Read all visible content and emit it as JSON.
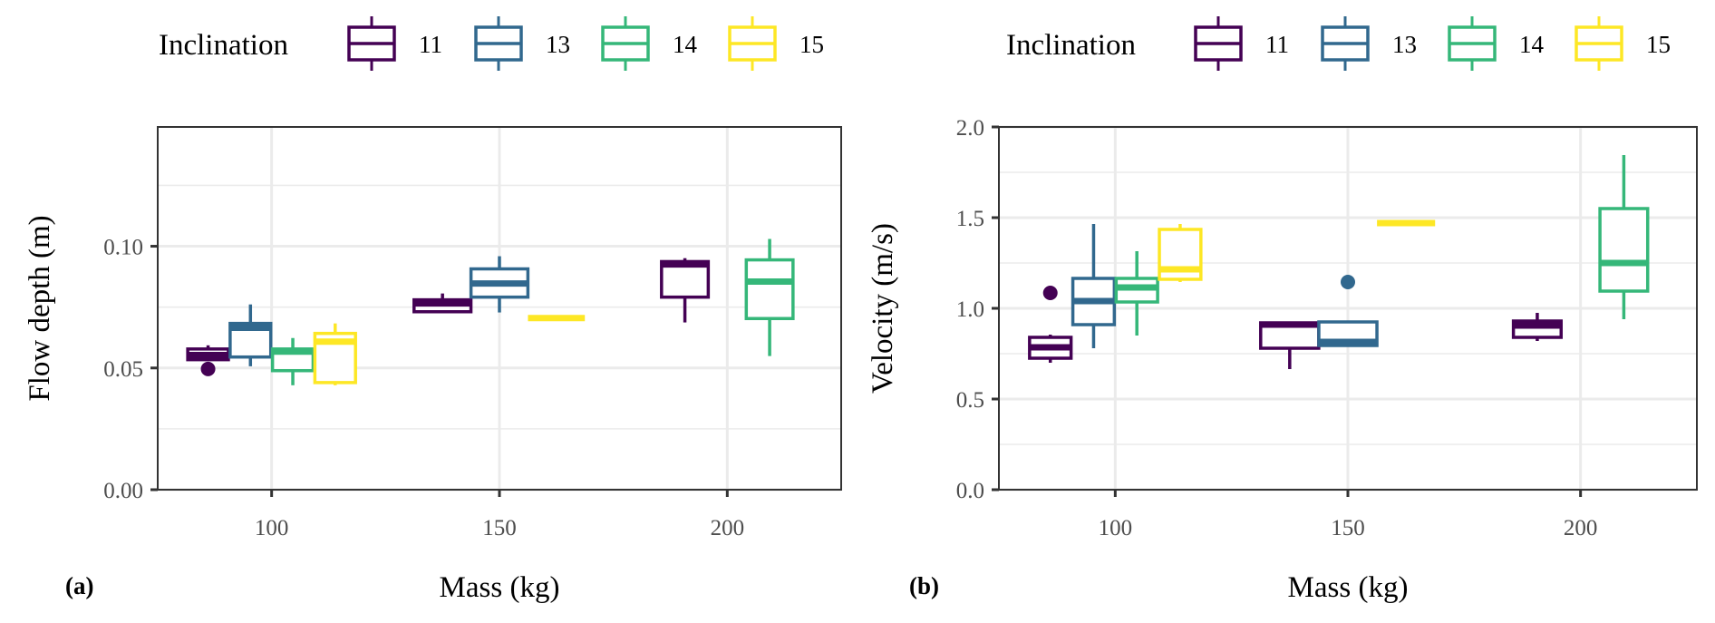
{
  "legend": {
    "title": "Inclination",
    "entries": [
      {
        "label": "11",
        "color": "#440154"
      },
      {
        "label": "13",
        "color": "#31688E"
      },
      {
        "label": "14",
        "color": "#35B779"
      },
      {
        "label": "15",
        "color": "#FDE725"
      }
    ]
  },
  "chart_data": [
    {
      "type": "box",
      "panel_tag": "(a)",
      "title": "",
      "xlabel": "Mass (kg)",
      "ylabel": "Flow depth (m)",
      "xlim": [
        75,
        225
      ],
      "ylim": [
        0,
        0.149
      ],
      "x_ticks": [
        100,
        150,
        200
      ],
      "x_tick_labels": [
        "100",
        "150",
        "200"
      ],
      "y_ticks": [
        0,
        0.05,
        0.1
      ],
      "y_tick_labels": [
        "0.00",
        "0.05",
        "0.10"
      ],
      "y_minor_grid": [
        0.025,
        0.075,
        0.125
      ],
      "grid": true,
      "legend_position": "top",
      "groups": [
        {
          "x": 100,
          "boxes": [
            {
              "series": "11",
              "min": 0.0534,
              "q1": 0.0534,
              "median": 0.0553,
              "q3": 0.0578,
              "max": 0.0593,
              "outliers": [
                0.0496
              ]
            },
            {
              "series": "13",
              "min": 0.0507,
              "q1": 0.0545,
              "median": 0.0665,
              "q3": 0.0683,
              "max": 0.0761,
              "outliers": []
            },
            {
              "series": "14",
              "min": 0.0429,
              "q1": 0.0489,
              "median": 0.0567,
              "q3": 0.0578,
              "max": 0.0623,
              "outliers": []
            },
            {
              "series": "15",
              "min": 0.0429,
              "q1": 0.044,
              "median": 0.0608,
              "q3": 0.0642,
              "max": 0.0683,
              "outliers": []
            }
          ]
        },
        {
          "x": 150,
          "boxes": [
            {
              "series": "11",
              "min": 0.0731,
              "q1": 0.0731,
              "median": 0.0765,
              "q3": 0.078,
              "max": 0.0806,
              "outliers": []
            },
            {
              "series": "13",
              "min": 0.0728,
              "q1": 0.0791,
              "median": 0.0847,
              "q3": 0.0907,
              "max": 0.0959,
              "outliers": []
            },
            {
              "series": "15",
              "min": 0.0705,
              "q1": 0.0705,
              "median": 0.0705,
              "q3": 0.0705,
              "max": 0.0705,
              "outliers": []
            }
          ]
        },
        {
          "x": 200,
          "boxes": [
            {
              "series": "11",
              "min": 0.0687,
              "q1": 0.0791,
              "median": 0.0925,
              "q3": 0.0937,
              "max": 0.0951,
              "outliers": []
            },
            {
              "series": "14",
              "min": 0.0549,
              "q1": 0.0703,
              "median": 0.0855,
              "q3": 0.0944,
              "max": 0.103,
              "outliers": []
            }
          ]
        }
      ]
    },
    {
      "type": "box",
      "panel_tag": "(b)",
      "title": "",
      "xlabel": "Mass (kg)",
      "ylabel": "Velocity (m/s)",
      "xlim": [
        75,
        225
      ],
      "ylim": [
        0,
        2.0
      ],
      "x_ticks": [
        100,
        150,
        200
      ],
      "x_tick_labels": [
        "100",
        "150",
        "200"
      ],
      "y_ticks": [
        0,
        0.5,
        1.0,
        1.5,
        2.0
      ],
      "y_tick_labels": [
        "0.0",
        "0.5",
        "1.0",
        "1.5",
        "2.0"
      ],
      "y_minor_grid": [
        0.25,
        0.75,
        1.25,
        1.75
      ],
      "grid": true,
      "legend_position": "top",
      "groups": [
        {
          "x": 100,
          "boxes": [
            {
              "series": "11",
              "min": 0.7,
              "q1": 0.725,
              "median": 0.785,
              "q3": 0.84,
              "max": 0.855,
              "outliers": [
                1.085
              ]
            },
            {
              "series": "13",
              "min": 0.78,
              "q1": 0.91,
              "median": 1.04,
              "q3": 1.165,
              "max": 1.465,
              "outliers": []
            },
            {
              "series": "14",
              "min": 0.85,
              "q1": 1.035,
              "median": 1.115,
              "q3": 1.165,
              "max": 1.315,
              "outliers": []
            },
            {
              "series": "15",
              "min": 1.145,
              "q1": 1.16,
              "median": 1.215,
              "q3": 1.435,
              "max": 1.465,
              "outliers": []
            }
          ]
        },
        {
          "x": 150,
          "boxes": [
            {
              "series": "11",
              "min": 0.665,
              "q1": 0.78,
              "median": 0.91,
              "q3": 0.92,
              "max": 0.92,
              "outliers": []
            },
            {
              "series": "13",
              "min": 0.795,
              "q1": 0.795,
              "median": 0.815,
              "q3": 0.925,
              "max": 0.925,
              "outliers": [
                1.145
              ]
            },
            {
              "series": "15",
              "min": 1.47,
              "q1": 1.47,
              "median": 1.47,
              "q3": 1.47,
              "max": 1.47,
              "outliers": []
            }
          ]
        },
        {
          "x": 200,
          "boxes": [
            {
              "series": "11",
              "min": 0.82,
              "q1": 0.84,
              "median": 0.905,
              "q3": 0.93,
              "max": 0.975,
              "outliers": []
            },
            {
              "series": "14",
              "min": 0.94,
              "q1": 1.095,
              "median": 1.25,
              "q3": 1.55,
              "max": 1.845,
              "outliers": []
            }
          ]
        }
      ]
    }
  ]
}
